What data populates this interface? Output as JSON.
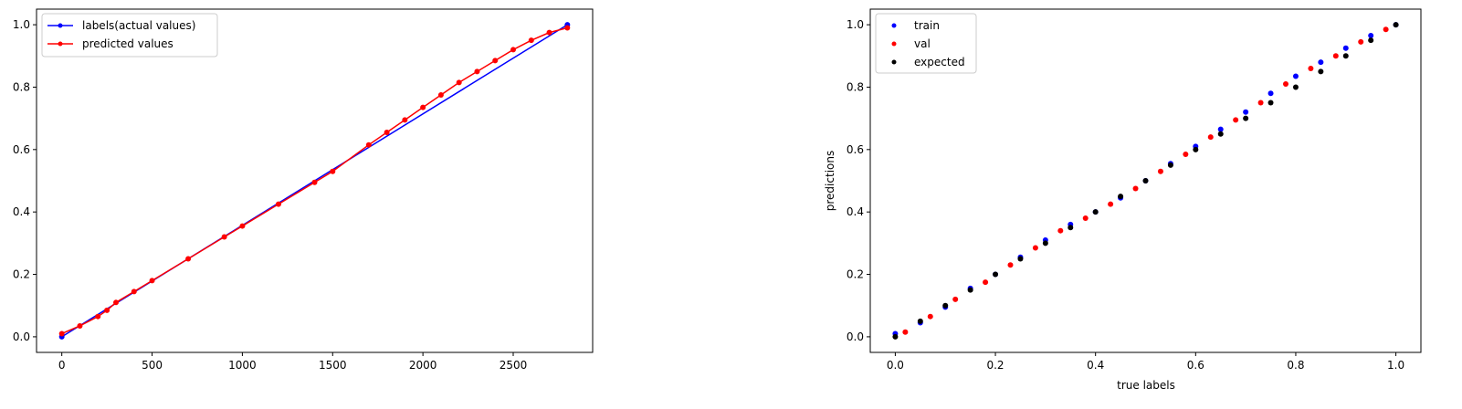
{
  "chart_data": [
    {
      "type": "line",
      "title": "",
      "xlabel": "",
      "ylabel": "",
      "xlim": [
        -140,
        2940
      ],
      "ylim": [
        -0.05,
        1.05
      ],
      "xticks": [
        0,
        500,
        1000,
        1500,
        2000,
        2500
      ],
      "yticks": [
        0.0,
        0.2,
        0.4,
        0.6,
        0.8,
        1.0
      ],
      "xtick_labels": [
        "0",
        "500",
        "1000",
        "1500",
        "2000",
        "2500"
      ],
      "ytick_labels": [
        "0.0",
        "0.2",
        "0.4",
        "0.6",
        "0.8",
        "1.0"
      ],
      "legend": "top-left",
      "grid": false,
      "series": [
        {
          "name": "labels(actual values)",
          "color": "#0000ff",
          "x": [
            0,
            2800
          ],
          "y": [
            0.0,
            1.0
          ]
        },
        {
          "name": "predicted values",
          "color": "#ff0000",
          "x": [
            0,
            100,
            200,
            250,
            300,
            400,
            500,
            700,
            900,
            1000,
            1200,
            1400,
            1500,
            1700,
            1800,
            1900,
            2000,
            2100,
            2200,
            2300,
            2400,
            2500,
            2600,
            2700,
            2800
          ],
          "y": [
            0.01,
            0.035,
            0.065,
            0.085,
            0.11,
            0.145,
            0.18,
            0.25,
            0.32,
            0.355,
            0.425,
            0.495,
            0.53,
            0.615,
            0.655,
            0.695,
            0.735,
            0.775,
            0.815,
            0.85,
            0.885,
            0.92,
            0.95,
            0.975,
            0.99
          ]
        }
      ]
    },
    {
      "type": "scatter",
      "title": "",
      "xlabel": "true labels",
      "ylabel": "predictions",
      "xlim": [
        -0.05,
        1.05
      ],
      "ylim": [
        -0.05,
        1.05
      ],
      "xticks": [
        0.0,
        0.2,
        0.4,
        0.6,
        0.8,
        1.0
      ],
      "yticks": [
        0.0,
        0.2,
        0.4,
        0.6,
        0.8,
        1.0
      ],
      "xtick_labels": [
        "0.0",
        "0.2",
        "0.4",
        "0.6",
        "0.8",
        "1.0"
      ],
      "ytick_labels": [
        "0.0",
        "0.2",
        "0.4",
        "0.6",
        "0.8",
        "1.0"
      ],
      "legend": "top-left",
      "grid": false,
      "series": [
        {
          "name": "train",
          "color": "#0000ff",
          "x": [
            0.0,
            0.05,
            0.1,
            0.15,
            0.2,
            0.25,
            0.3,
            0.35,
            0.4,
            0.45,
            0.5,
            0.55,
            0.6,
            0.65,
            0.7,
            0.75,
            0.8,
            0.85,
            0.9,
            0.95,
            1.0
          ],
          "y": [
            0.01,
            0.045,
            0.095,
            0.155,
            0.2,
            0.255,
            0.31,
            0.36,
            0.4,
            0.445,
            0.5,
            0.555,
            0.61,
            0.665,
            0.72,
            0.78,
            0.835,
            0.88,
            0.925,
            0.965,
            1.0
          ]
        },
        {
          "name": "val",
          "color": "#ff0000",
          "x": [
            0.02,
            0.07,
            0.12,
            0.18,
            0.23,
            0.28,
            0.33,
            0.38,
            0.43,
            0.48,
            0.53,
            0.58,
            0.63,
            0.68,
            0.73,
            0.78,
            0.83,
            0.88,
            0.93,
            0.98
          ],
          "y": [
            0.015,
            0.065,
            0.12,
            0.175,
            0.23,
            0.285,
            0.34,
            0.38,
            0.425,
            0.475,
            0.53,
            0.585,
            0.64,
            0.695,
            0.75,
            0.81,
            0.86,
            0.9,
            0.945,
            0.985
          ]
        },
        {
          "name": "expected",
          "color": "#000000",
          "x": [
            0.0,
            0.05,
            0.1,
            0.15,
            0.2,
            0.25,
            0.3,
            0.35,
            0.4,
            0.45,
            0.5,
            0.55,
            0.6,
            0.65,
            0.7,
            0.75,
            0.8,
            0.85,
            0.9,
            0.95,
            1.0
          ],
          "y": [
            0.0,
            0.05,
            0.1,
            0.15,
            0.2,
            0.25,
            0.3,
            0.35,
            0.4,
            0.45,
            0.5,
            0.55,
            0.6,
            0.65,
            0.7,
            0.75,
            0.8,
            0.85,
            0.9,
            0.95,
            1.0
          ]
        }
      ]
    }
  ]
}
